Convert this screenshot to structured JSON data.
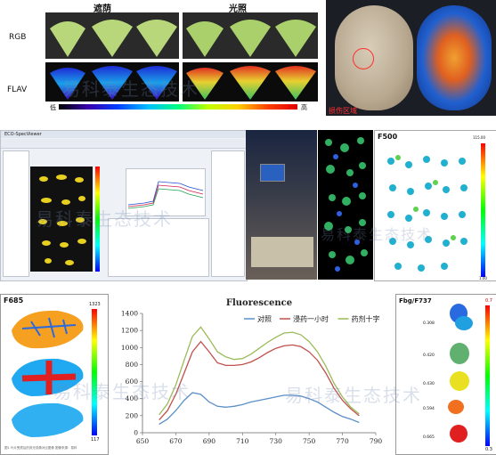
{
  "top_panel": {
    "columns": [
      "遮荫",
      "光照"
    ],
    "rows": [
      "RGB",
      "FLAV"
    ],
    "scale_low": "低",
    "scale_high": "高",
    "fruit_annotation": "损伤区域"
  },
  "middle_panel": {
    "software_title": "ECO-SpecViewer",
    "right_image_title": "F500",
    "right_colorbar_max": "115.00",
    "right_colorbar_min": "1.00"
  },
  "bottom_left": {
    "title": "F685",
    "scale_max": "1323",
    "scale_min": "117",
    "caption": "图1 叶片受损后的荧光成像对比图像 图像来源：易科"
  },
  "watermark": "易科泰生态技术",
  "chart_data": {
    "type": "line",
    "title": "Fluorescence",
    "x": [
      660,
      665,
      670,
      675,
      680,
      685,
      690,
      695,
      700,
      705,
      710,
      715,
      720,
      725,
      730,
      735,
      740,
      745,
      750,
      755,
      760,
      765,
      770,
      775,
      780
    ],
    "xlim": [
      650,
      790
    ],
    "ylim": [
      0,
      1400
    ],
    "xticks": [
      "650",
      "670",
      "690",
      "710",
      "730",
      "750",
      "770",
      "790"
    ],
    "yticks": [
      "0",
      "200",
      "400",
      "600",
      "800",
      "1000",
      "1200",
      "1400"
    ],
    "series": [
      {
        "name": "对照",
        "color": "#5b8fc7",
        "values": [
          100,
          160,
          260,
          380,
          470,
          450,
          360,
          310,
          300,
          310,
          330,
          360,
          380,
          400,
          420,
          440,
          440,
          430,
          400,
          360,
          300,
          240,
          190,
          160,
          120
        ]
      },
      {
        "name": "浸药一小时",
        "color": "#c0504d",
        "values": [
          150,
          260,
          450,
          700,
          950,
          1070,
          950,
          820,
          790,
          790,
          800,
          830,
          880,
          940,
          990,
          1020,
          1030,
          1010,
          950,
          850,
          700,
          520,
          380,
          280,
          200
        ]
      },
      {
        "name": "药剂十字",
        "color": "#9bbb59",
        "values": [
          210,
          340,
          560,
          850,
          1130,
          1240,
          1100,
          950,
          890,
          860,
          870,
          920,
          990,
          1060,
          1120,
          1170,
          1180,
          1150,
          1070,
          950,
          780,
          580,
          420,
          300,
          220
        ]
      }
    ]
  },
  "bottom_right": {
    "title": "Fbg/F737",
    "values": [
      "0.308",
      "0.420",
      "0.430",
      "0.594",
      "0.665"
    ],
    "scale_max": "0.7",
    "scale_min": "0.3"
  }
}
